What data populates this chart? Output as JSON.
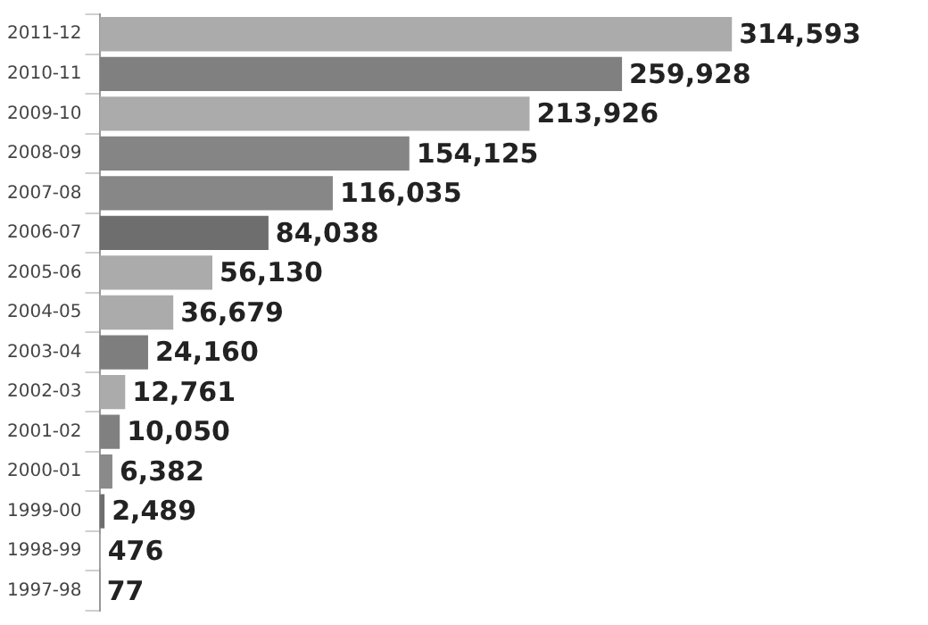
{
  "chart_data": {
    "type": "bar",
    "orientation": "horizontal",
    "value_labels": [
      "314,593",
      "259,928",
      "213,926",
      "154,125",
      "116,035",
      "84,038",
      "56,130",
      "36,679",
      "24,160",
      "12,761",
      "10,050",
      "6,382",
      "2,489",
      "476",
      "77"
    ],
    "categories": [
      "2011-12",
      "2010-11",
      "2009-10",
      "2008-09",
      "2007-08",
      "2006-07",
      "2005-06",
      "2004-05",
      "2003-04",
      "2002-03",
      "2001-02",
      "2000-01",
      "1999-00",
      "1998-99",
      "1997-98"
    ],
    "values": [
      314593,
      259928,
      213926,
      154125,
      116035,
      84038,
      56130,
      36679,
      24160,
      12761,
      10050,
      6382,
      2489,
      476,
      77
    ],
    "colors": [
      "#ababab",
      "#808080",
      "#ababab",
      "#858585",
      "#878787",
      "#6e6e6e",
      "#ababab",
      "#ababab",
      "#7e7e7e",
      "#ababab",
      "#808080",
      "#8a8a8a",
      "#6e6e6e",
      "#b0b0b0",
      "#8a8a8a"
    ]
  }
}
